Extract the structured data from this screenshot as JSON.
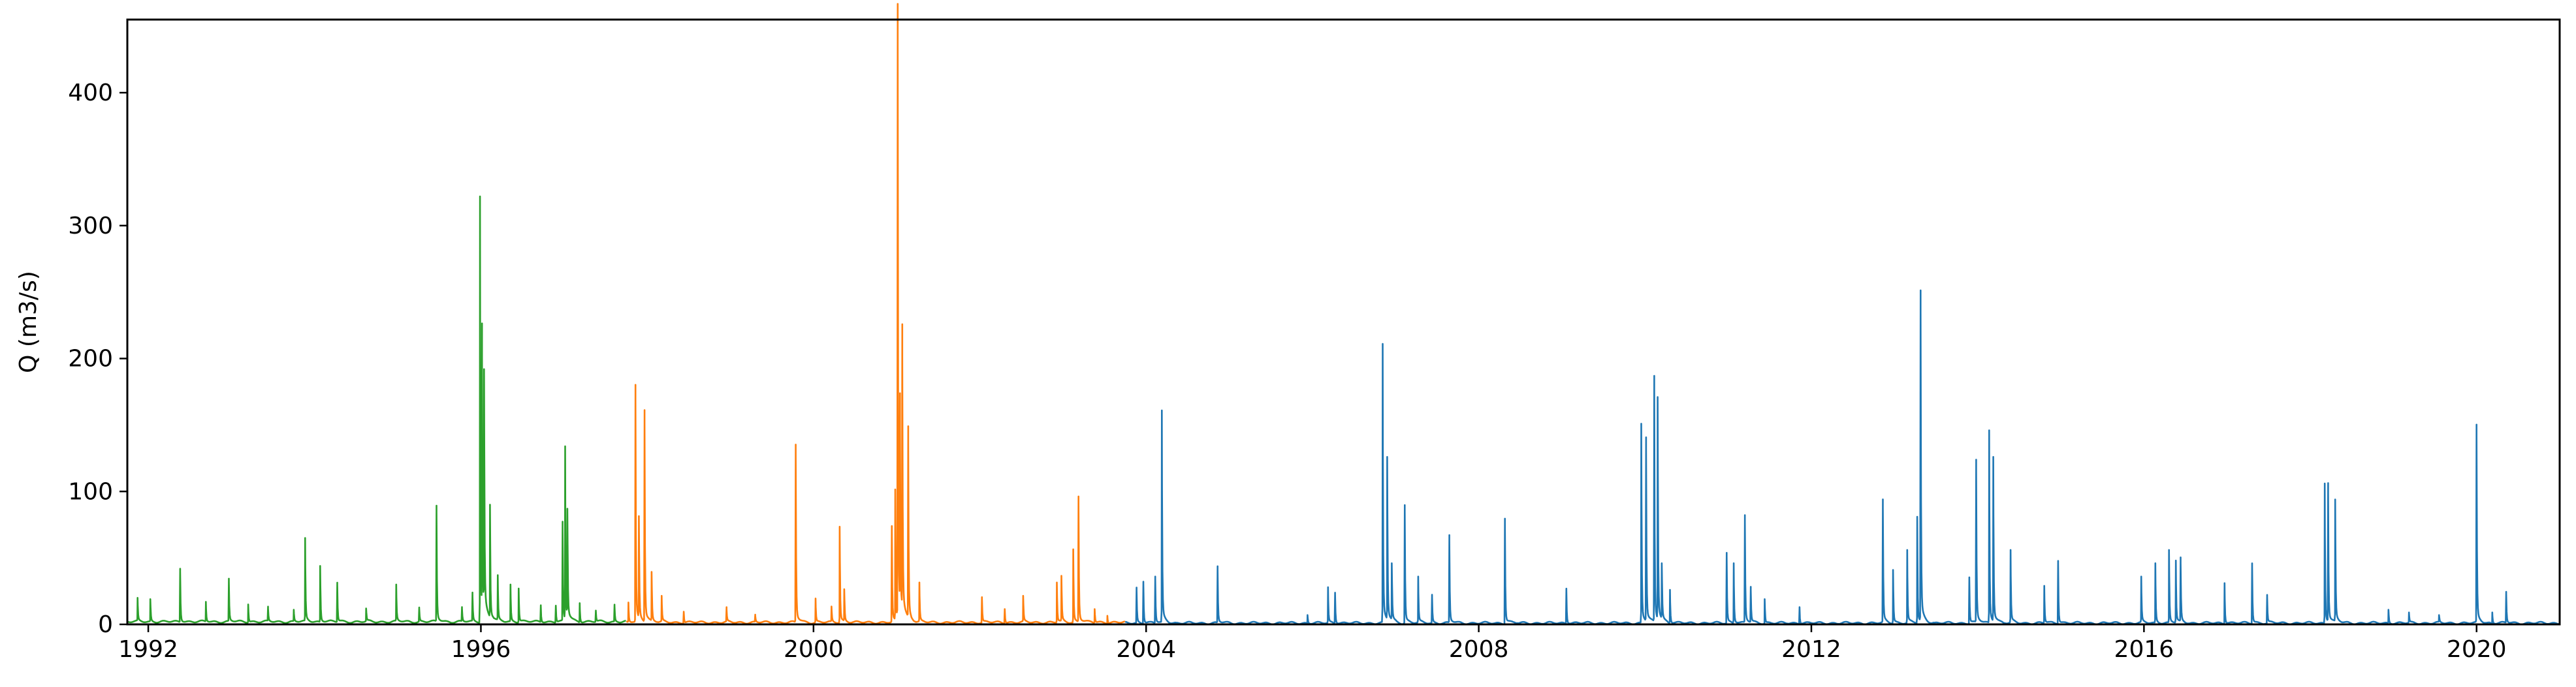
{
  "chart_data": {
    "type": "line",
    "title": "",
    "xlabel": "",
    "ylabel": "Q (m3/s)",
    "xlim": [
      "1991-10-01",
      "2020-12-31"
    ],
    "ylim": [
      0,
      455
    ],
    "x_ticks": [
      "1992",
      "1996",
      "2000",
      "2004",
      "2008",
      "2012",
      "2016",
      "2020"
    ],
    "y_ticks": [
      "0",
      "100",
      "200",
      "300",
      "400"
    ],
    "grid": false,
    "legend": "none",
    "series": [
      {
        "color": "#2ca02c",
        "baseline": 2,
        "start": "1991-10-01",
        "end": "1997-09-30",
        "peaks": [
          [
            "1991-11-15",
            18
          ],
          [
            "1992-01-10",
            17
          ],
          [
            "1992-05-20",
            38
          ],
          [
            "1992-09-10",
            15
          ],
          [
            "1992-12-20",
            30
          ],
          [
            "1993-03-15",
            13
          ],
          [
            "1993-06-10",
            10
          ],
          [
            "1993-10-01",
            9
          ],
          [
            "1993-11-20",
            63
          ],
          [
            "1994-01-25",
            42
          ],
          [
            "1994-04-10",
            28
          ],
          [
            "1994-08-15",
            10
          ],
          [
            "1994-12-25",
            28
          ],
          [
            "1995-04-05",
            10
          ],
          [
            "1995-06-20",
            82
          ],
          [
            "1995-10-10",
            10
          ],
          [
            "1995-11-25",
            20
          ],
          [
            "1995-12-28",
            320
          ],
          [
            "1996-01-06",
            200
          ],
          [
            "1996-01-15",
            190
          ],
          [
            "1996-02-10",
            88
          ],
          [
            "1996-03-15",
            35
          ],
          [
            "1996-05-10",
            28
          ],
          [
            "1996-06-15",
            25
          ],
          [
            "1996-09-20",
            12
          ],
          [
            "1996-11-25",
            12
          ],
          [
            "1996-12-25",
            70
          ],
          [
            "1997-01-05",
            132
          ],
          [
            "1997-01-15",
            85
          ],
          [
            "1997-03-10",
            14
          ],
          [
            "1997-05-20",
            8
          ],
          [
            "1997-08-10",
            12
          ]
        ]
      },
      {
        "color": "#ff7f0e",
        "baseline": 1.5,
        "start": "1997-10-01",
        "end": "2003-09-30",
        "peaks": [
          [
            "1997-10-10",
            15
          ],
          [
            "1997-11-10",
            168
          ],
          [
            "1997-11-25",
            80
          ],
          [
            "1997-12-20",
            150
          ],
          [
            "1998-01-20",
            38
          ],
          [
            "1998-03-05",
            20
          ],
          [
            "1998-06-10",
            8
          ],
          [
            "1998-12-15",
            10
          ],
          [
            "1999-04-20",
            5
          ],
          [
            "1999-10-15",
            126
          ],
          [
            "2000-01-10",
            18
          ],
          [
            "2000-03-20",
            12
          ],
          [
            "2000-04-25",
            72
          ],
          [
            "2000-05-15",
            25
          ],
          [
            "2000-12-10",
            68
          ],
          [
            "2000-12-25",
            100
          ],
          [
            "2001-01-05",
            435
          ],
          [
            "2001-01-15",
            147
          ],
          [
            "2001-01-25",
            200
          ],
          [
            "2001-02-20",
            135
          ],
          [
            "2001-04-10",
            30
          ],
          [
            "2002-01-10",
            18
          ],
          [
            "2002-04-20",
            10
          ],
          [
            "2002-07-10",
            20
          ],
          [
            "2002-12-05",
            30
          ],
          [
            "2002-12-25",
            35
          ],
          [
            "2003-02-15",
            55
          ],
          [
            "2003-03-10",
            89
          ],
          [
            "2003-05-20",
            10
          ],
          [
            "2003-07-15",
            5
          ]
        ]
      },
      {
        "color": "#1f77b4",
        "baseline": 1,
        "start": "2003-10-01",
        "end": "2020-12-31",
        "peaks": [
          [
            "2003-11-20",
            25
          ],
          [
            "2003-12-20",
            30
          ],
          [
            "2004-02-10",
            33
          ],
          [
            "2004-03-10",
            160
          ],
          [
            "2004-11-10",
            40
          ],
          [
            "2005-12-10",
            6
          ],
          [
            "2006-03-10",
            27
          ],
          [
            "2006-04-10",
            22
          ],
          [
            "2006-11-05",
            210
          ],
          [
            "2006-11-25",
            125
          ],
          [
            "2006-12-15",
            45
          ],
          [
            "2007-02-10",
            84
          ],
          [
            "2007-04-10",
            35
          ],
          [
            "2007-06-10",
            20
          ],
          [
            "2007-08-25",
            62
          ],
          [
            "2008-04-25",
            75
          ],
          [
            "2009-01-20",
            25
          ],
          [
            "2009-12-15",
            150
          ],
          [
            "2010-01-05",
            130
          ],
          [
            "2010-02-10",
            174
          ],
          [
            "2010-02-25",
            170
          ],
          [
            "2010-03-15",
            45
          ],
          [
            "2010-04-20",
            25
          ],
          [
            "2010-12-25",
            50
          ],
          [
            "2011-01-25",
            45
          ],
          [
            "2011-03-15",
            76
          ],
          [
            "2011-04-10",
            25
          ],
          [
            "2011-06-10",
            18
          ],
          [
            "2011-11-10",
            12
          ],
          [
            "2012-11-10",
            87
          ],
          [
            "2012-12-25",
            40
          ],
          [
            "2013-02-25",
            55
          ],
          [
            "2013-04-10",
            80
          ],
          [
            "2013-04-25",
            234
          ],
          [
            "2013-11-25",
            33
          ],
          [
            "2013-12-25",
            115
          ],
          [
            "2014-02-20",
            145
          ],
          [
            "2014-03-10",
            125
          ],
          [
            "2014-05-25",
            55
          ],
          [
            "2014-10-20",
            28
          ],
          [
            "2014-12-20",
            45
          ],
          [
            "2015-12-20",
            35
          ],
          [
            "2016-02-20",
            45
          ],
          [
            "2016-04-20",
            55
          ],
          [
            "2016-05-20",
            47
          ],
          [
            "2016-06-10",
            45
          ],
          [
            "2016-12-20",
            30
          ],
          [
            "2017-04-20",
            43
          ],
          [
            "2017-06-25",
            20
          ],
          [
            "2018-03-05",
            105
          ],
          [
            "2018-03-20",
            98
          ],
          [
            "2018-04-20",
            93
          ],
          [
            "2018-12-10",
            10
          ],
          [
            "2019-03-10",
            8
          ],
          [
            "2019-07-20",
            6
          ],
          [
            "2020-01-01",
            140
          ],
          [
            "2020-03-10",
            8
          ],
          [
            "2020-05-10",
            22
          ]
        ]
      }
    ]
  }
}
